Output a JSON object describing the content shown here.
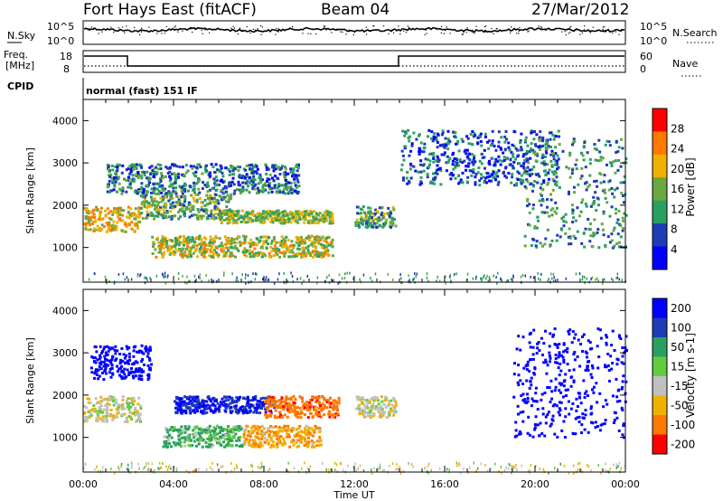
{
  "header": {
    "station": "Fort Hays East (fitACF)",
    "beam": "Beam 04",
    "date": "27/Mar/2012"
  },
  "noise_panel": {
    "left_label": "N.Sky",
    "right_label": "N.Search",
    "top_tick": "10^5",
    "bottom_tick": "10^0"
  },
  "freq_panel": {
    "left_label_line1": "Freq.",
    "left_label_line2": "[MHz]",
    "left_ticks": [
      "18",
      "8"
    ],
    "right_label": "Nave",
    "right_ticks": [
      "60",
      "0"
    ]
  },
  "cpid": {
    "label": "CPID",
    "value": "normal (fast) 151 IF"
  },
  "chart_data": [
    {
      "type": "heatmap",
      "title": "",
      "xlabel": "Time UT",
      "ylabel": "Slant Range [km]",
      "x_range_hours": [
        0,
        24
      ],
      "y_range_km": [
        180,
        4500
      ],
      "y_ticks": [
        1000,
        2000,
        3000,
        4000
      ],
      "colorbar_label": "Power [dB]",
      "colorbar_ticks": [
        4,
        8,
        12,
        16,
        20,
        24,
        28
      ],
      "colorbar_colors": [
        "#0000ff",
        "#1e3cb4",
        "#2aa060",
        "#6aa840",
        "#f0b000",
        "#ff7800",
        "#ff0000"
      ],
      "echo_regions": [
        {
          "t_start": 0.0,
          "t_end": 2.5,
          "r_min": 1400,
          "r_max": 2000,
          "level": 20
        },
        {
          "t_start": 2.5,
          "t_end": 6.5,
          "r_min": 1700,
          "r_max": 2300,
          "level": 14
        },
        {
          "t_start": 6.0,
          "t_end": 11.0,
          "r_min": 1600,
          "r_max": 1900,
          "level": 16
        },
        {
          "t_start": 3.0,
          "t_end": 11.0,
          "r_min": 800,
          "r_max": 1300,
          "level": 18
        },
        {
          "t_start": 1.0,
          "t_end": 9.5,
          "r_min": 2300,
          "r_max": 3000,
          "level": 10
        },
        {
          "t_start": 12.0,
          "t_end": 13.8,
          "r_min": 1500,
          "r_max": 2000,
          "level": 14
        },
        {
          "t_start": 14.0,
          "t_end": 21.0,
          "r_min": 2500,
          "r_max": 3800,
          "level": 8
        },
        {
          "t_start": 19.5,
          "t_end": 24.0,
          "r_min": 1000,
          "r_max": 3600,
          "level": 12
        }
      ]
    },
    {
      "type": "heatmap",
      "title": "",
      "xlabel": "Time UT",
      "ylabel": "Slant Range [km]",
      "x_range_hours": [
        0,
        24
      ],
      "y_range_km": [
        180,
        4500
      ],
      "y_ticks": [
        1000,
        2000,
        3000,
        4000
      ],
      "x_ticks": [
        "00:00",
        "04:00",
        "08:00",
        "12:00",
        "16:00",
        "20:00",
        "00:00"
      ],
      "colorbar_label": "Velocity [m s-1]",
      "colorbar_ticks": [
        200,
        100,
        50,
        15,
        -15,
        -50,
        -100,
        -200
      ],
      "colorbar_colors": [
        "#0000ff",
        "#1e3cb4",
        "#2aa060",
        "#60cc40",
        "#c0c0c0",
        "#f0b000",
        "#ff7800",
        "#ff0000"
      ],
      "echo_regions": [
        {
          "t_start": 0.0,
          "t_end": 2.5,
          "r_min": 1400,
          "r_max": 2000,
          "level": 0
        },
        {
          "t_start": 0.3,
          "t_end": 3.0,
          "r_min": 2400,
          "r_max": 3200,
          "level": 200
        },
        {
          "t_start": 4.0,
          "t_end": 8.5,
          "r_min": 1600,
          "r_max": 2000,
          "level": 150
        },
        {
          "t_start": 8.0,
          "t_end": 11.3,
          "r_min": 1500,
          "r_max": 2000,
          "level": -80
        },
        {
          "t_start": 3.5,
          "t_end": 7.0,
          "r_min": 800,
          "r_max": 1300,
          "level": 40
        },
        {
          "t_start": 7.0,
          "t_end": 10.5,
          "r_min": 800,
          "r_max": 1300,
          "level": -40
        },
        {
          "t_start": 12.0,
          "t_end": 13.8,
          "r_min": 1500,
          "r_max": 2000,
          "level": 0
        },
        {
          "t_start": 19.0,
          "t_end": 24.0,
          "r_min": 1000,
          "r_max": 3600,
          "level": 180
        }
      ]
    }
  ]
}
